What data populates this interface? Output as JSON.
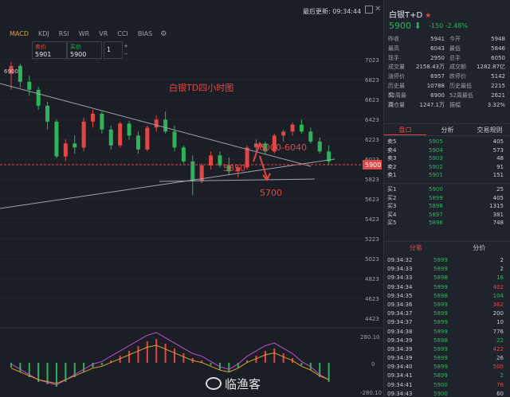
{
  "header": {
    "last_update": "最后更新: 09:34:44"
  },
  "indicators": {
    "tabs": [
      "MACD",
      "KDJ",
      "RSI",
      "WR",
      "VR",
      "CCI",
      "BIAS"
    ],
    "active": "MACD"
  },
  "order_box": {
    "sell_label": "卖价",
    "sell_value": "5901",
    "buy_label": "买价",
    "buy_value": "5900",
    "qty": "1",
    "plus": "+",
    "minus": "−"
  },
  "chart": {
    "y_labels": [
      "7023",
      "6823",
      "6623",
      "6423",
      "6223",
      "6023",
      "5823",
      "5623",
      "5423",
      "5223",
      "5023",
      "4823",
      "4623",
      "4423"
    ],
    "price_tag": "5900",
    "left_price": "6900",
    "annotation_title": "白银TD四小时图",
    "annotation_range": "6000-6040",
    "annotation_mid": "5850",
    "annotation_target": "5700",
    "macd_labels": [
      "280.10",
      "-280.10"
    ],
    "macd_zero": "0"
  },
  "chart_data": {
    "type": "candlestick",
    "title": "白银TD四小时图",
    "ylim": [
      4323,
      7123
    ],
    "candles": [
      [
        6780,
        6900,
        6620,
        6860
      ],
      [
        6860,
        6880,
        6640,
        6700
      ],
      [
        6700,
        6760,
        6560,
        6620
      ],
      [
        6620,
        6650,
        6420,
        6460
      ],
      [
        6460,
        6500,
        6220,
        6300
      ],
      [
        6300,
        6320,
        5930,
        5950
      ],
      [
        5950,
        6120,
        5900,
        6080
      ],
      [
        6080,
        6160,
        5980,
        6040
      ],
      [
        6040,
        6340,
        6000,
        6300
      ],
      [
        6300,
        6420,
        6240,
        6380
      ],
      [
        6380,
        6400,
        6180,
        6220
      ],
      [
        6220,
        6260,
        6020,
        6060
      ],
      [
        6060,
        6300,
        6040,
        6280
      ],
      [
        6280,
        6310,
        6120,
        6160
      ],
      [
        6160,
        6200,
        5980,
        6020
      ],
      [
        6020,
        6260,
        6000,
        6240
      ],
      [
        6240,
        6360,
        6200,
        6320
      ],
      [
        6320,
        6400,
        6180,
        6200
      ],
      [
        6200,
        6260,
        6000,
        6040
      ],
      [
        6040,
        6060,
        5880,
        5900
      ],
      [
        5900,
        5960,
        5560,
        5700
      ],
      [
        5700,
        5880,
        5680,
        5860
      ],
      [
        5860,
        6000,
        5820,
        5960
      ],
      [
        5960,
        6000,
        5840,
        5860
      ],
      [
        5860,
        5940,
        5760,
        5800
      ],
      [
        5800,
        5860,
        5740,
        5840
      ],
      [
        5840,
        6060,
        5820,
        6040
      ],
      [
        6040,
        6120,
        6000,
        6080
      ],
      [
        6080,
        6100,
        5980,
        6000
      ],
      [
        6000,
        6180,
        5980,
        6160
      ],
      [
        6160,
        6220,
        6100,
        6200
      ],
      [
        6200,
        6290,
        6160,
        6270
      ],
      [
        6270,
        6320,
        6180,
        6200
      ],
      [
        6200,
        6240,
        6080,
        6100
      ],
      [
        6100,
        6140,
        5980,
        6000
      ],
      [
        6000,
        6060,
        5860,
        5900
      ]
    ],
    "macd_hist": [
      -20,
      -40,
      -60,
      -80,
      -90,
      -100,
      -80,
      -60,
      -40,
      -20,
      -10,
      10,
      30,
      50,
      70,
      90,
      100,
      80,
      60,
      40,
      20,
      10,
      -10,
      -30,
      -40,
      -20,
      10,
      30,
      50,
      60,
      40,
      20,
      -10,
      -30,
      -60,
      -80
    ]
  },
  "quote": {
    "title": "白银T+D",
    "star": "★",
    "price": "5900",
    "arrow": "⬇",
    "change": "-150  -2.48%",
    "stats": [
      [
        "昨收",
        "5941",
        "今开",
        "5948"
      ],
      [
        "最高",
        "6043",
        "最低",
        "5846"
      ],
      [
        "现手",
        "2950",
        "总手",
        "6050"
      ],
      [
        "成交量",
        "2158.43万",
        "成交额",
        "1282.87亿"
      ],
      [
        "涨停价",
        "6957",
        "跌停价",
        "5142"
      ],
      [
        "历史最高",
        "10788",
        "历史最低",
        "2215"
      ],
      [
        "52周最高",
        "6900",
        "52周最低",
        "2621"
      ],
      [
        "持仓量",
        "1247.1万",
        "振幅",
        "3.32%"
      ]
    ],
    "tabs": [
      "盘口",
      "分析",
      "交易规则"
    ],
    "asks": [
      [
        "卖5",
        "5905",
        "405"
      ],
      [
        "卖4",
        "5904",
        "573"
      ],
      [
        "卖3",
        "5903",
        "48"
      ],
      [
        "卖2",
        "5902",
        "91"
      ],
      [
        "卖1",
        "5901",
        "151"
      ]
    ],
    "bids": [
      [
        "买1",
        "5900",
        "25"
      ],
      [
        "买2",
        "5899",
        "405"
      ],
      [
        "买3",
        "5898",
        "1315"
      ],
      [
        "买4",
        "5897",
        "381"
      ],
      [
        "买5",
        "5896",
        "748"
      ]
    ],
    "tick_tabs": [
      "分笔",
      "分价"
    ],
    "ticks": [
      [
        "09:34:32",
        "5899",
        "2",
        "white"
      ],
      [
        "09:34:33",
        "5899",
        "2",
        "white"
      ],
      [
        "09:34:33",
        "5898",
        "16",
        "green"
      ],
      [
        "09:34:34",
        "5899",
        "402",
        "red"
      ],
      [
        "09:34:35",
        "5898",
        "104",
        "green"
      ],
      [
        "09:34:36",
        "5899",
        "362",
        "red"
      ],
      [
        "09:34:37",
        "5899",
        "200",
        "white"
      ],
      [
        "09:34:37",
        "5899",
        "10",
        "white"
      ],
      [
        "09:34:38",
        "5899",
        "776",
        "white"
      ],
      [
        "09:34:39",
        "5898",
        "22",
        "green"
      ],
      [
        "09:34:39",
        "5899",
        "422",
        "red"
      ],
      [
        "09:34:39",
        "5899",
        "26",
        "white"
      ],
      [
        "09:34:40",
        "5899",
        "500",
        "red"
      ],
      [
        "09:34:41",
        "5899",
        "2",
        "green"
      ],
      [
        "09:34:41",
        "5900",
        "78",
        "red"
      ],
      [
        "09:34:43",
        "5900",
        "60",
        "white"
      ]
    ]
  },
  "watermark": "临渔客",
  "colors": {
    "up": "#e04848",
    "down": "#2fb35a",
    "bg": "#1b1e25",
    "accent": "#e0a030"
  }
}
